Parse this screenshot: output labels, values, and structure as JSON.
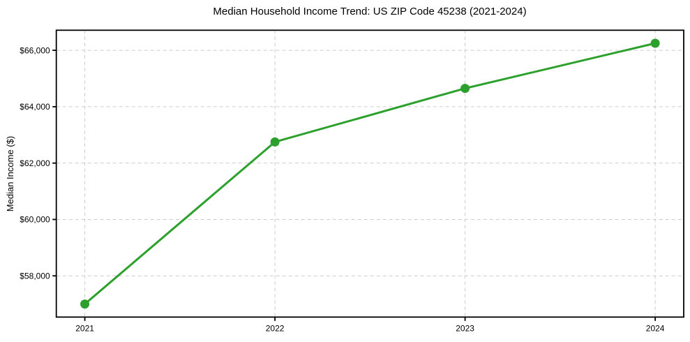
{
  "chart_data": {
    "type": "line",
    "title": "Median Household Income Trend: US ZIP Code 45238 (2021-2024)",
    "xlabel": "",
    "ylabel": "Median Income ($)",
    "x": [
      2021,
      2022,
      2023,
      2024
    ],
    "x_tick_labels": [
      "2021",
      "2022",
      "2023",
      "2024"
    ],
    "series": [
      {
        "name": "Median household income",
        "values": [
          57000,
          62750,
          64650,
          66250
        ],
        "color": "#2ca02c",
        "marker": "circle"
      }
    ],
    "y_ticks": [
      58000,
      60000,
      62000,
      64000,
      66000
    ],
    "y_tick_labels": [
      "$58,000",
      "$60,000",
      "$62,000",
      "$64,000",
      "$66,000"
    ],
    "xlim": [
      2020.85,
      2024.15
    ],
    "ylim": [
      56537.5,
      66712.5
    ],
    "grid": true,
    "grid_style": "dashed",
    "legend": false,
    "colors": {
      "line": "#2ca02c",
      "grid": "#cccccc",
      "axis": "#000000",
      "background": "#ffffff"
    }
  }
}
